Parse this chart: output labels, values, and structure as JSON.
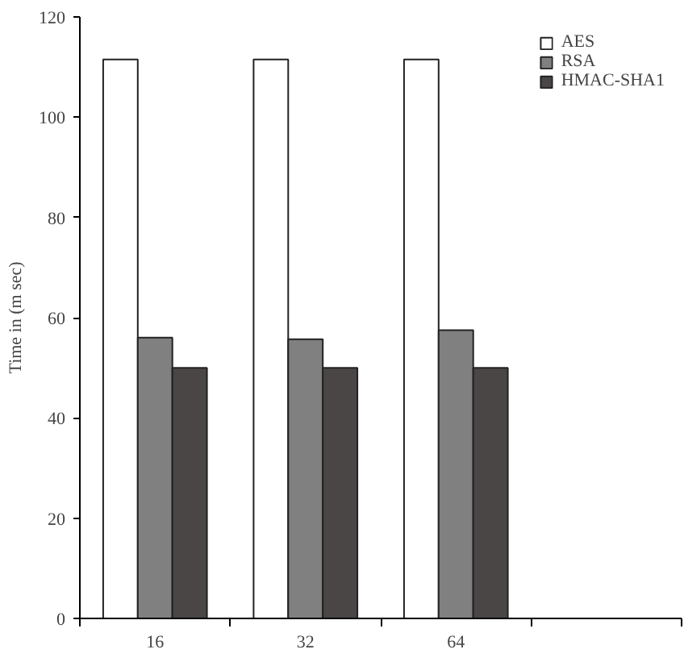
{
  "chart_data": {
    "type": "bar",
    "ylabel": "Time in (m sec)",
    "categories": [
      "16",
      "32",
      "64",
      null
    ],
    "series": [
      {
        "name": "AES",
        "color": "#ffffff",
        "values": [
          111.5,
          111.5,
          111.5,
          null
        ]
      },
      {
        "name": "RSA",
        "color": "#808080",
        "values": [
          56,
          55.7,
          57.5,
          null
        ]
      },
      {
        "name": "HMAC-SHA1",
        "color": "#4a4646",
        "values": [
          50,
          50,
          50,
          null
        ]
      }
    ],
    "ylim": [
      0,
      120
    ],
    "yticks": [
      0,
      20,
      40,
      60,
      80,
      100,
      120
    ],
    "grid": false,
    "legend": "top right"
  }
}
